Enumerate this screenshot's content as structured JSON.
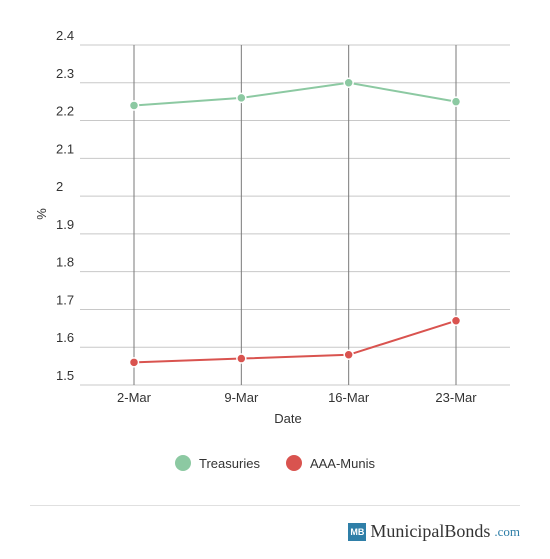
{
  "chart_data": {
    "type": "line",
    "x": [
      "2-Mar",
      "9-Mar",
      "16-Mar",
      "23-Mar"
    ],
    "series": [
      {
        "name": "Treasuries",
        "values": [
          2.24,
          2.26,
          2.3,
          2.25
        ],
        "color": "#8cc9a2"
      },
      {
        "name": "AAA-Munis",
        "values": [
          1.56,
          1.57,
          1.58,
          1.67
        ],
        "color": "#d9534f"
      }
    ],
    "y_ticks": [
      "1.5",
      "1.6",
      "1.7",
      "1.8",
      "1.9",
      "2",
      "2.1",
      "2.2",
      "2.3",
      "2.4"
    ],
    "xlabel": "Date",
    "ylabel": "%",
    "ylim": [
      1.5,
      2.4
    ],
    "grid": true,
    "legend": "bottom-center"
  },
  "branding": {
    "mark": "MB",
    "name": "MunicipalBonds",
    "tld": ".com"
  }
}
